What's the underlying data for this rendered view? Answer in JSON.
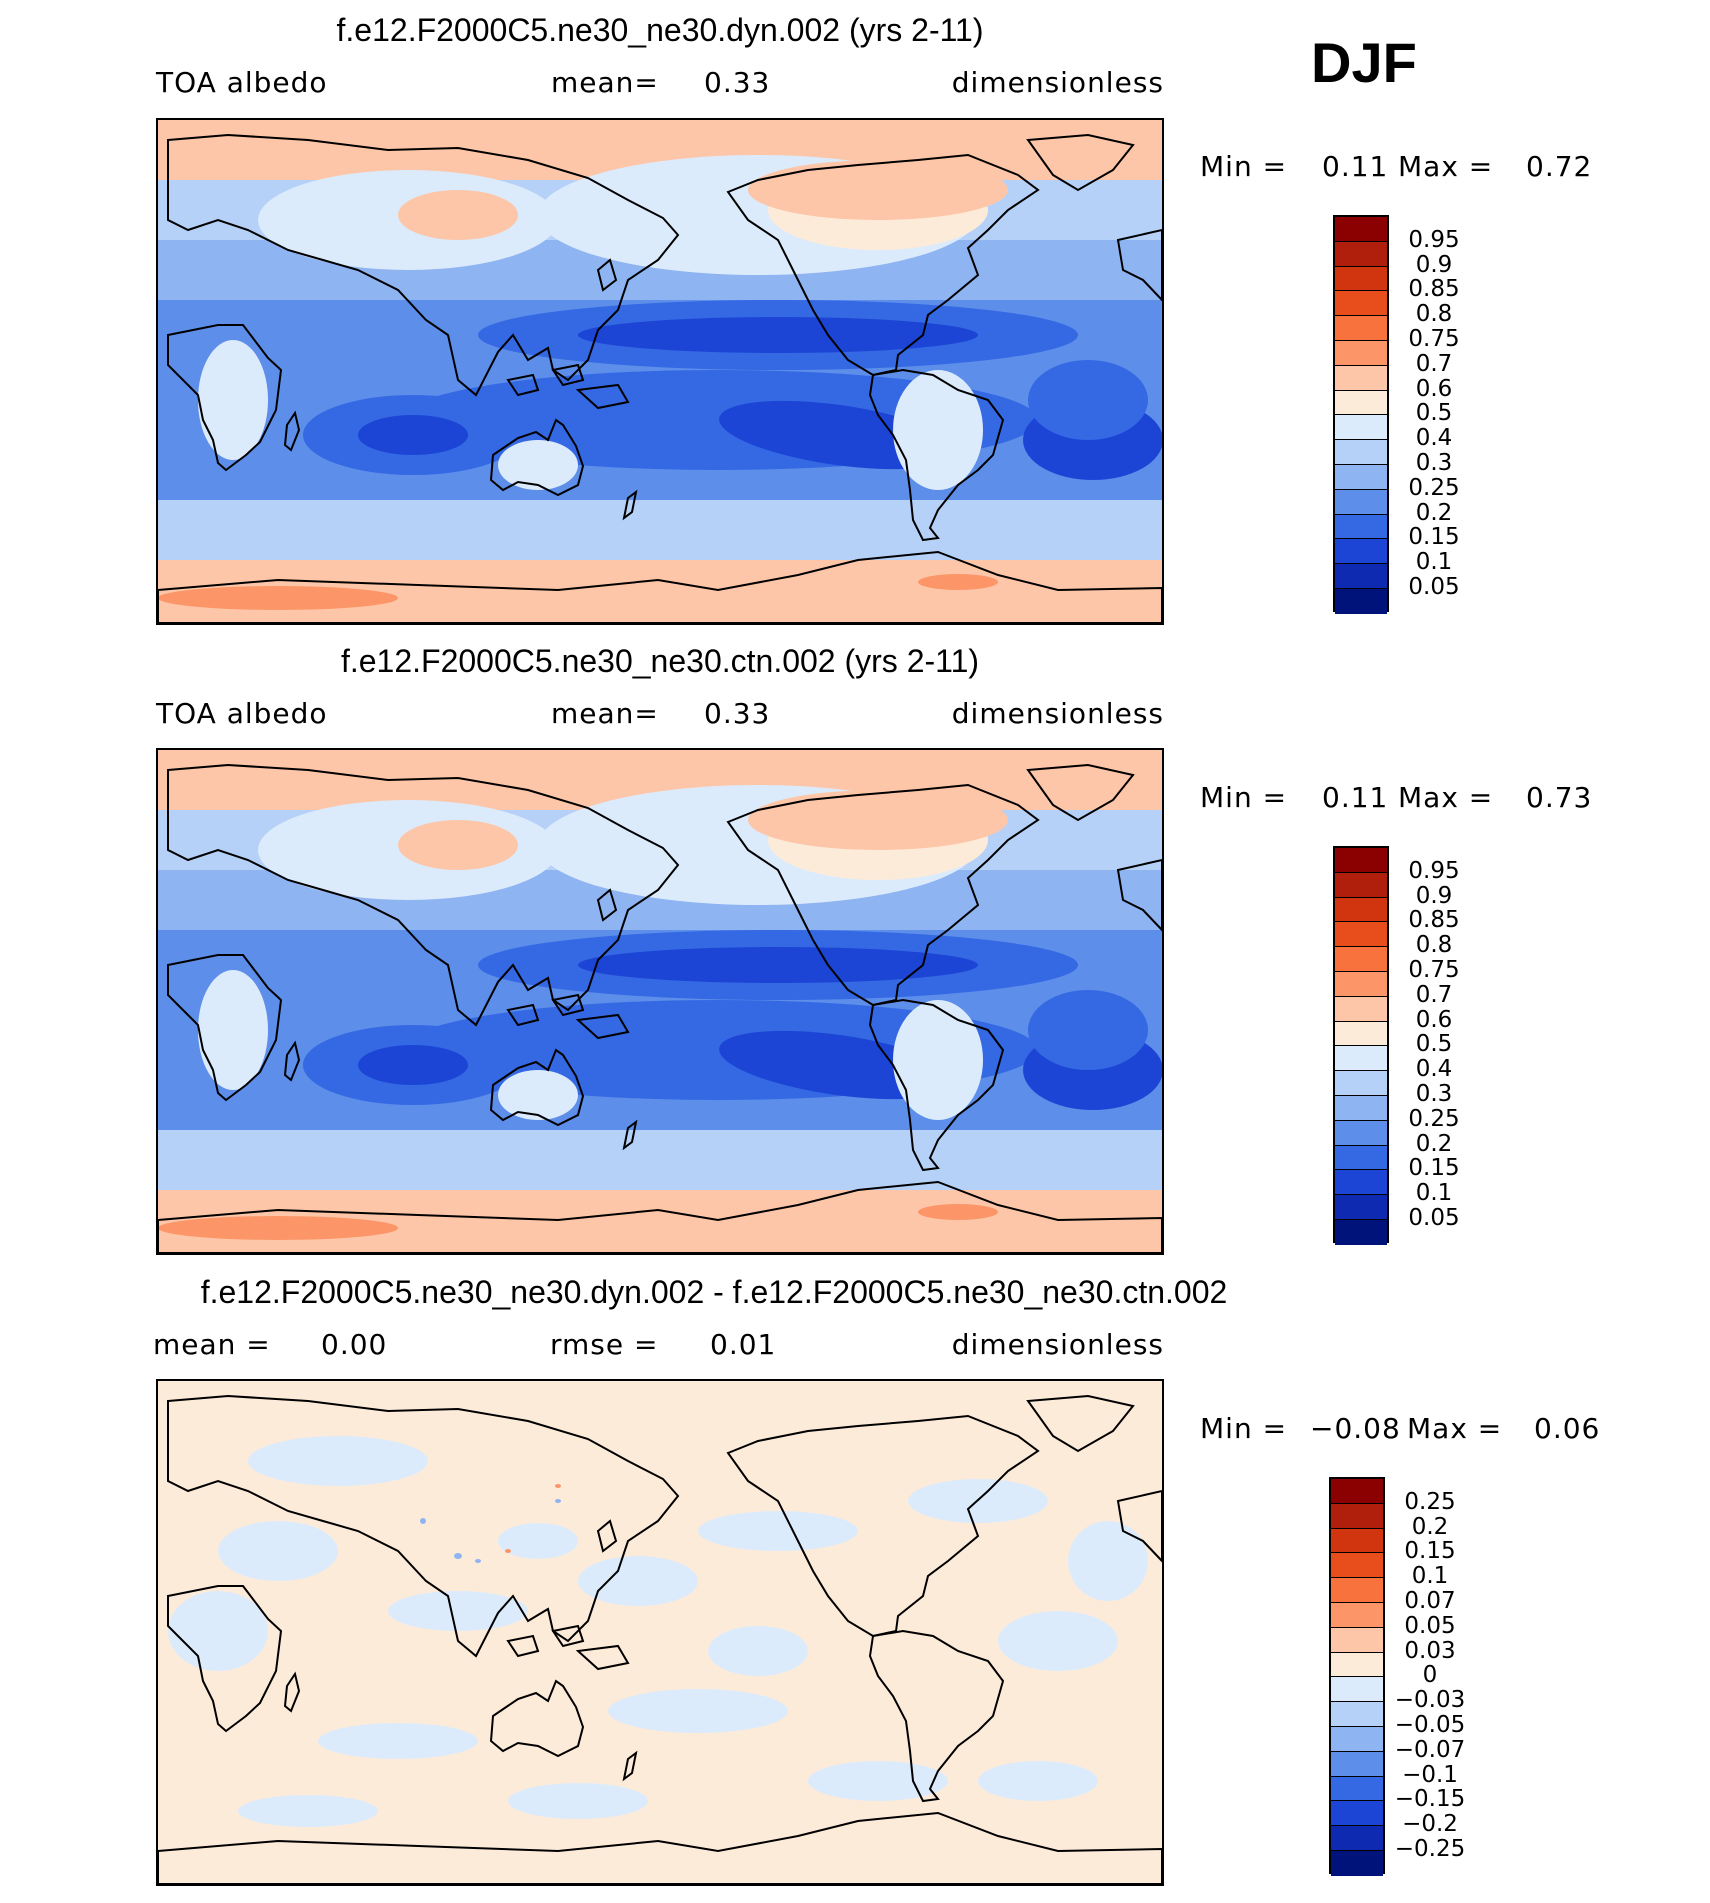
{
  "season": "DJF",
  "panels": [
    {
      "title": "f.e12.F2000C5.ne30_ne30.dyn.002 (yrs 2-11)",
      "left_label": "TOA albedo",
      "center_label": "mean=",
      "center_value": "0.33",
      "right_label": "dimensionless",
      "min_label": "Min =",
      "min_value": "0.11",
      "max_label": "Max =",
      "max_value": "0.72",
      "scale": "abs"
    },
    {
      "title": "f.e12.F2000C5.ne30_ne30.ctn.002 (yrs 2-11)",
      "left_label": "TOA albedo",
      "center_label": "mean=",
      "center_value": "0.33",
      "right_label": "dimensionless",
      "min_label": "Min =",
      "min_value": "0.11",
      "max_label": "Max =",
      "max_value": "0.73",
      "scale": "abs"
    },
    {
      "title": "f.e12.F2000C5.ne30_ne30.dyn.002 - f.e12.F2000C5.ne30_ne30.ctn.002",
      "left_label": "mean =",
      "left_value": "0.00",
      "center_label": "rmse =",
      "center_value": "0.01",
      "right_label": "dimensionless",
      "min_label": "Min =",
      "min_value": "−0.08",
      "max_label": "Max =",
      "max_value": "0.06",
      "scale": "diff"
    }
  ],
  "colorbars": {
    "abs": {
      "colors": [
        "#8b0000",
        "#b01f0c",
        "#d03510",
        "#e84d1c",
        "#f7723d",
        "#fc9668",
        "#fdc6a8",
        "#fdebd9",
        "#dcebfb",
        "#b6d1f8",
        "#8fb4f2",
        "#5c8eea",
        "#3568e3",
        "#1c45d6",
        "#0d2ab0",
        "#00137a"
      ],
      "labels": [
        "0.95",
        "0.9",
        "0.85",
        "0.8",
        "0.75",
        "0.7",
        "0.6",
        "0.5",
        "0.4",
        "0.3",
        "0.25",
        "0.2",
        "0.15",
        "0.1",
        "0.05"
      ]
    },
    "diff": {
      "colors": [
        "#8b0000",
        "#b01f0c",
        "#d03510",
        "#e84d1c",
        "#f7723d",
        "#fc9668",
        "#fdc6a8",
        "#fdebd9",
        "#dcebfb",
        "#b6d1f8",
        "#8fb4f2",
        "#5c8eea",
        "#3568e3",
        "#1c45d6",
        "#0d2ab0",
        "#00137a"
      ],
      "labels": [
        "0.25",
        "0.2",
        "0.15",
        "0.1",
        "0.07",
        "0.05",
        "0.03",
        "0",
        "−0.03",
        "−0.05",
        "−0.07",
        "−0.1",
        "−0.15",
        "−0.2",
        "−0.25"
      ]
    }
  }
}
